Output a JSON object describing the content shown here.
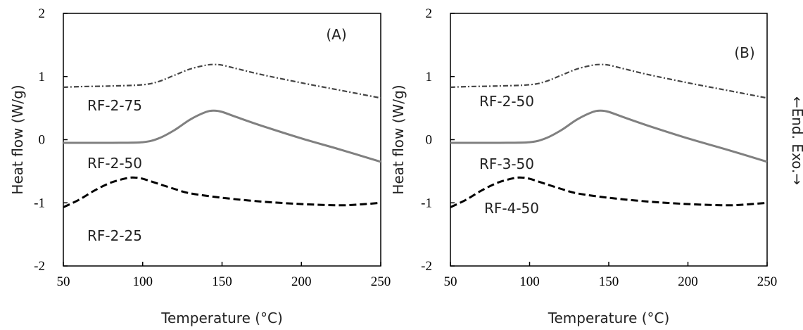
{
  "chart_data": [
    {
      "type": "line",
      "panel_label": "(A)",
      "xlabel": "Temperature (°C)",
      "ylabel": "Heat flow (W/g)",
      "xlim": [
        50,
        250
      ],
      "ylim": [
        -2,
        2
      ],
      "xticks": [
        50,
        100,
        150,
        200,
        250
      ],
      "yticks": [
        2,
        1,
        0,
        -1,
        -2
      ],
      "grid": false,
      "series": [
        {
          "name": "RF-2-75",
          "style": "dash-dot",
          "color": "#444444",
          "x": [
            50,
            60,
            80,
            100,
            110,
            120,
            130,
            140,
            145,
            150,
            160,
            175,
            200,
            225,
            250
          ],
          "y": [
            0.83,
            0.84,
            0.85,
            0.87,
            0.92,
            1.02,
            1.12,
            1.18,
            1.19,
            1.18,
            1.12,
            1.03,
            0.9,
            0.78,
            0.66
          ]
        },
        {
          "name": "RF-2-50",
          "style": "solid",
          "color": "#808080",
          "x": [
            50,
            60,
            80,
            100,
            110,
            120,
            130,
            140,
            145,
            150,
            160,
            175,
            200,
            225,
            250
          ],
          "y": [
            -0.05,
            -0.05,
            -0.05,
            -0.04,
            0.02,
            0.15,
            0.32,
            0.44,
            0.46,
            0.44,
            0.35,
            0.22,
            0.02,
            -0.16,
            -0.35
          ]
        },
        {
          "name": "RF-2-25",
          "style": "dashed",
          "color": "#000000",
          "x": [
            50,
            60,
            70,
            80,
            90,
            95,
            100,
            110,
            120,
            130,
            150,
            175,
            200,
            225,
            240,
            250
          ],
          "y": [
            -1.07,
            -0.95,
            -0.8,
            -0.68,
            -0.61,
            -0.6,
            -0.62,
            -0.7,
            -0.78,
            -0.85,
            -0.92,
            -0.98,
            -1.02,
            -1.04,
            -1.02,
            -1.0
          ]
        }
      ]
    },
    {
      "type": "line",
      "panel_label": "(B)",
      "xlabel": "Temperature (°C)",
      "ylabel": "Heat flow (W/g)",
      "xlim": [
        50,
        250
      ],
      "ylim": [
        -2,
        2
      ],
      "xticks": [
        50,
        100,
        150,
        200,
        250
      ],
      "yticks": [
        2,
        1,
        0,
        -1,
        -2
      ],
      "grid": false,
      "series": [
        {
          "name": "RF-2-50",
          "style": "dash-dot",
          "color": "#444444",
          "x": [
            50,
            60,
            80,
            100,
            110,
            120,
            130,
            140,
            145,
            150,
            160,
            175,
            200,
            225,
            250
          ],
          "y": [
            0.83,
            0.84,
            0.85,
            0.87,
            0.92,
            1.02,
            1.12,
            1.18,
            1.19,
            1.18,
            1.12,
            1.03,
            0.9,
            0.78,
            0.66
          ]
        },
        {
          "name": "RF-3-50",
          "style": "solid",
          "color": "#808080",
          "x": [
            50,
            60,
            80,
            100,
            110,
            120,
            130,
            140,
            145,
            150,
            160,
            175,
            200,
            225,
            250
          ],
          "y": [
            -0.05,
            -0.05,
            -0.05,
            -0.04,
            0.02,
            0.15,
            0.32,
            0.44,
            0.46,
            0.44,
            0.35,
            0.22,
            0.02,
            -0.16,
            -0.35
          ]
        },
        {
          "name": "RF-4-50",
          "style": "dashed",
          "color": "#000000",
          "x": [
            50,
            60,
            70,
            80,
            90,
            95,
            100,
            110,
            120,
            130,
            150,
            175,
            200,
            225,
            240,
            250
          ],
          "y": [
            -1.07,
            -0.95,
            -0.8,
            -0.68,
            -0.61,
            -0.6,
            -0.62,
            -0.7,
            -0.78,
            -0.85,
            -0.92,
            -0.98,
            -1.02,
            -1.04,
            -1.02,
            -1.0
          ]
        }
      ]
    }
  ],
  "side_annotation": "←End. Exo.→"
}
